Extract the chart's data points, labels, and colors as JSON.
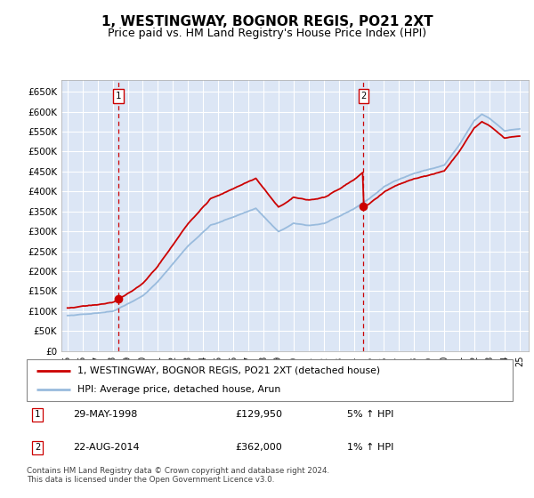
{
  "title": "1, WESTINGWAY, BOGNOR REGIS, PO21 2XT",
  "subtitle": "Price paid vs. HM Land Registry's House Price Index (HPI)",
  "legend_line1": "1, WESTINGWAY, BOGNOR REGIS, PO21 2XT (detached house)",
  "legend_line2": "HPI: Average price, detached house, Arun",
  "footnote": "Contains HM Land Registry data © Crown copyright and database right 2024.\nThis data is licensed under the Open Government Licence v3.0.",
  "sale1_date": "29-MAY-1998",
  "sale1_price": "£129,950",
  "sale1_hpi": "5% ↑ HPI",
  "sale1_year": 1998.38,
  "sale1_value": 129950,
  "sale2_date": "22-AUG-2014",
  "sale2_price": "£362,000",
  "sale2_hpi": "1% ↑ HPI",
  "sale2_year": 2014.64,
  "sale2_value": 362000,
  "ylim": [
    0,
    680000
  ],
  "yticks": [
    0,
    50000,
    100000,
    150000,
    200000,
    250000,
    300000,
    350000,
    400000,
    450000,
    500000,
    550000,
    600000,
    650000
  ],
  "bg_color": "#dce6f5",
  "grid_color": "#ffffff",
  "line_color_red": "#cc0000",
  "line_color_blue": "#99bbdd",
  "dashed_color": "#cc0000",
  "title_fontsize": 11,
  "subtitle_fontsize": 9
}
